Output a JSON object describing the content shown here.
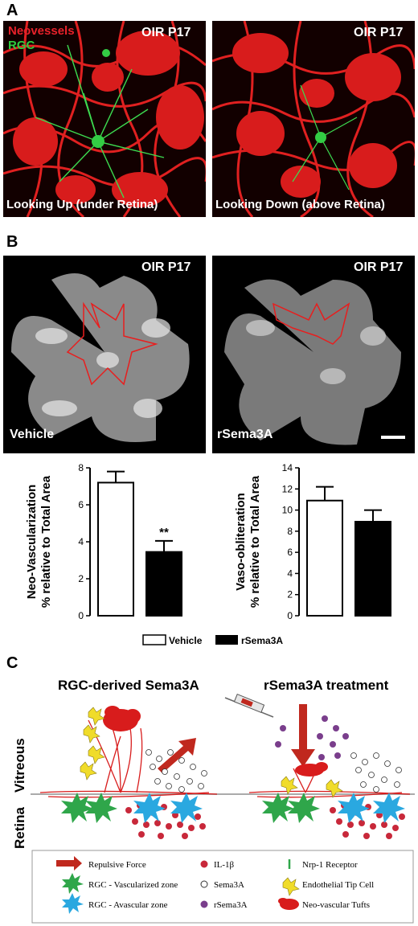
{
  "panel_a": {
    "letter": "A",
    "left": {
      "label_neo": "Neovessels",
      "label_rgc": "RGC",
      "label_oir": "OIR P17",
      "caption": "Looking Up (under Retina)"
    },
    "right": {
      "label_oir": "OIR P17",
      "caption": "Looking Down (above Retina)"
    },
    "colors": {
      "neo": "#e8212a",
      "rgc": "#2ecc40"
    }
  },
  "panel_b": {
    "letter": "B",
    "left": {
      "label_oir": "OIR P17",
      "caption": "Vehicle"
    },
    "right": {
      "label_oir": "OIR P17",
      "caption": "rSema3A"
    },
    "legend": {
      "vehicle": "Vehicle",
      "rsema3a": "rSema3A"
    }
  },
  "chart_data": [
    {
      "type": "bar",
      "categories": [
        "Vehicle",
        "rSema3A"
      ],
      "values": [
        7.2,
        3.45
      ],
      "errors": [
        0.6,
        0.6
      ],
      "ylabel_line1": "Neo-Vascularization",
      "ylabel_line2": "% relative to Total Area",
      "ylim": [
        0,
        8
      ],
      "yticks": [
        "0",
        "2",
        "4",
        "6",
        "8"
      ],
      "annotation": "**",
      "fills": [
        "#ffffff",
        "#000000"
      ]
    },
    {
      "type": "bar",
      "categories": [
        "Vehicle",
        "rSema3A"
      ],
      "values": [
        10.9,
        8.9
      ],
      "errors": [
        1.3,
        1.1
      ],
      "ylabel_line1": "Vaso-obliteration",
      "ylabel_line2": "% relative to Total Area",
      "ylim": [
        0,
        14
      ],
      "yticks": [
        "0",
        "2",
        "4",
        "6",
        "8",
        "10",
        "12",
        "14"
      ],
      "fills": [
        "#ffffff",
        "#000000"
      ]
    }
  ],
  "panel_c": {
    "letter": "C",
    "title_left": "RGC-derived Sema3A",
    "title_right": "rSema3A treatment",
    "side_vitreous": "Vitreous",
    "side_retina": "Retina",
    "key": {
      "repulsive": "Repulsive Force",
      "rgc_vasc": "RGC - Vascularized zone",
      "rgc_avasc": "RGC - Avascular zone",
      "il1b": "IL-1β",
      "sema3a": "Sema3A",
      "rsema3a": "rSema3A",
      "nrp1": "Nrp-1 Receptor",
      "tip": "Endothelial Tip Cell",
      "tufts": "Neo-vascular Tufts"
    }
  }
}
